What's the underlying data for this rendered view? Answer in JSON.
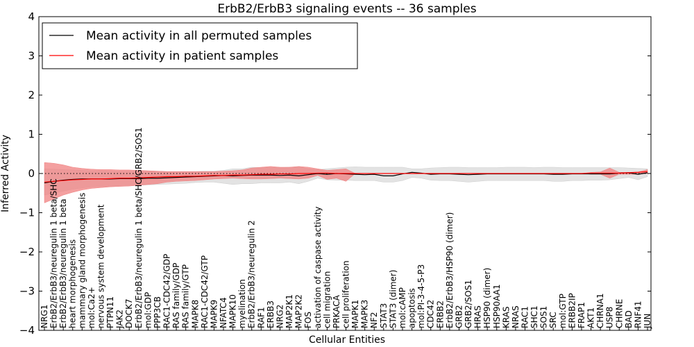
{
  "chart_data": {
    "type": "line",
    "title": "ErbB2/ErbB3 signaling events -- 36 samples",
    "xlabel": "Cellular Entities",
    "ylabel": "Inferred Activity",
    "ylim": [
      -4,
      4
    ],
    "yticks": [
      -4,
      -3,
      -2,
      -1,
      0,
      1,
      2,
      3,
      4
    ],
    "grid": false,
    "legend_position": "top-left",
    "categories": [
      "NRG1",
      "ErbB2/ErbB3/neuregulin 1 beta/SHC",
      "ErbB2/ErbB3/neuregulin 1 beta",
      "heart morphogenesis",
      "mammary gland morphogenesis",
      "mol:Ca2+",
      "nervous system development",
      "PTPN11",
      "JAK2",
      "DOCK7",
      "ErbB2/ErbB3/neuregulin 1 beta/SHC/GRB2/SOS1",
      "mol:GDP",
      "PPP3CB",
      "RAC1-CDC42/GDP",
      "RAS family/GDP",
      "RAS family/GTP",
      "MAPK8",
      "RAC1-CDC42/GTP",
      "MAPK9",
      "NFATC4",
      "MAPK10",
      "myelination",
      "ErbB2/ErbB3/neuregulin 2",
      "RAF1",
      "ERBB3",
      "NRG2",
      "MAP2K1",
      "MAP2K2",
      "FOS",
      "activation of caspase activity",
      "cell migration",
      "PRKACA",
      "cell proliferation",
      "MAPK1",
      "MAPK3",
      "NF2",
      "STAT3",
      "STAT3 (dimer)",
      "mol:cAMP",
      "apoptosis",
      "mol:PI-3-4-5-P3",
      "CDC42",
      "ERBB2",
      "ErbB2/ErbB3/HSP90 (dimer)",
      "GRB2",
      "GRB2/SOS1",
      "HRAS",
      "HSP90 (dimer)",
      "HSP90AA1",
      "KRAS",
      "NRAS",
      "RAC1",
      "SHC1",
      "SOS1",
      "SRC",
      "mol:GTP",
      "ERBB2IP",
      "FRAP1",
      "AKT1",
      "CHRNA1",
      "USP8",
      "CHRNE",
      "BAD",
      "RNF41",
      "JUN"
    ],
    "series": [
      {
        "name": "Mean activity in all permuted samples",
        "color": "#000000",
        "values": [
          -0.24,
          -0.2,
          -0.17,
          -0.15,
          -0.14,
          -0.14,
          -0.14,
          -0.14,
          -0.13,
          -0.13,
          -0.13,
          -0.12,
          -0.12,
          -0.11,
          -0.1,
          -0.09,
          -0.08,
          -0.07,
          -0.06,
          -0.05,
          -0.06,
          -0.05,
          -0.04,
          -0.04,
          -0.04,
          -0.05,
          -0.04,
          -0.06,
          -0.03,
          0.0,
          -0.02,
          0.0,
          -0.01,
          -0.02,
          -0.03,
          -0.02,
          -0.06,
          -0.06,
          -0.01,
          0.03,
          0.01,
          -0.02,
          -0.01,
          -0.01,
          -0.02,
          -0.03,
          -0.02,
          -0.01,
          -0.01,
          -0.01,
          -0.01,
          -0.01,
          -0.01,
          -0.01,
          -0.02,
          -0.02,
          -0.01,
          -0.01,
          -0.01,
          -0.01,
          -0.01,
          0.01,
          0.02,
          -0.02,
          0.02
        ],
        "band": {
          "color": "#cccccc",
          "upper": [
            0.12,
            0.11,
            0.1,
            0.09,
            0.08,
            0.07,
            0.07,
            0.06,
            0.06,
            0.06,
            0.06,
            0.06,
            0.06,
            0.05,
            0.05,
            0.05,
            0.05,
            0.06,
            0.06,
            0.08,
            0.12,
            0.12,
            0.16,
            0.15,
            0.15,
            0.15,
            0.16,
            0.17,
            0.12,
            0.1,
            0.12,
            0.14,
            0.16,
            0.17,
            0.16,
            0.16,
            0.16,
            0.16,
            0.16,
            0.12,
            0.12,
            0.14,
            0.15,
            0.16,
            0.16,
            0.15,
            0.15,
            0.15,
            0.15,
            0.16,
            0.16,
            0.16,
            0.15,
            0.16,
            0.16,
            0.15,
            0.15,
            0.15,
            0.15,
            0.15,
            0.15,
            0.15,
            0.14,
            0.13,
            0.12
          ],
          "lower": [
            -0.55,
            -0.5,
            -0.45,
            -0.4,
            -0.37,
            -0.34,
            -0.33,
            -0.32,
            -0.31,
            -0.3,
            -0.3,
            -0.29,
            -0.28,
            -0.27,
            -0.26,
            -0.25,
            -0.23,
            -0.22,
            -0.22,
            -0.25,
            -0.28,
            -0.26,
            -0.26,
            -0.24,
            -0.24,
            -0.24,
            -0.22,
            -0.26,
            -0.2,
            -0.12,
            -0.16,
            -0.17,
            -0.17,
            -0.18,
            -0.18,
            -0.18,
            -0.22,
            -0.22,
            -0.18,
            -0.1,
            -0.12,
            -0.17,
            -0.18,
            -0.18,
            -0.2,
            -0.22,
            -0.2,
            -0.18,
            -0.18,
            -0.18,
            -0.18,
            -0.18,
            -0.18,
            -0.18,
            -0.2,
            -0.2,
            -0.18,
            -0.18,
            -0.17,
            -0.17,
            -0.16,
            -0.13,
            -0.1,
            -0.16,
            -0.08
          ]
        }
      },
      {
        "name": "Mean activity in patient samples",
        "color": "#ff0000",
        "values": [
          -0.22,
          -0.2,
          -0.18,
          -0.16,
          -0.15,
          -0.14,
          -0.14,
          -0.13,
          -0.12,
          -0.12,
          -0.11,
          -0.1,
          -0.09,
          -0.08,
          -0.08,
          -0.07,
          -0.07,
          -0.06,
          -0.05,
          -0.05,
          -0.04,
          -0.04,
          -0.03,
          -0.02,
          -0.02,
          -0.01,
          -0.01,
          0.0,
          0.0,
          0.01,
          0.01,
          0.0,
          0.0,
          0.0,
          0.0,
          0.0,
          0.0,
          0.0,
          0.0,
          0.0,
          0.0,
          0.0,
          0.0,
          0.0,
          0.0,
          0.0,
          0.0,
          0.0,
          0.0,
          0.0,
          0.0,
          0.0,
          0.0,
          0.0,
          0.0,
          0.0,
          0.0,
          0.0,
          0.01,
          0.01,
          0.01,
          0.01,
          0.02,
          0.03,
          0.05
        ],
        "band": {
          "color": "#f08080",
          "upper": [
            0.28,
            0.26,
            0.22,
            0.16,
            0.13,
            0.11,
            0.1,
            0.1,
            0.09,
            0.09,
            0.08,
            0.07,
            0.06,
            0.05,
            0.05,
            0.05,
            0.05,
            0.05,
            0.05,
            0.06,
            0.07,
            0.09,
            0.14,
            0.16,
            0.18,
            0.16,
            0.16,
            0.18,
            0.16,
            0.12,
            0.08,
            0.1,
            0.12,
            0.0,
            0.0,
            0.0,
            0.0,
            0.0,
            0.0,
            0.0,
            0.0,
            0.0,
            0.0,
            0.0,
            0.0,
            0.0,
            0.0,
            0.0,
            0.0,
            0.0,
            0.0,
            0.0,
            0.0,
            0.0,
            0.0,
            0.0,
            0.0,
            0.0,
            0.03,
            0.04,
            0.14,
            0.03,
            0.03,
            0.04,
            0.1
          ],
          "lower": [
            -0.75,
            -0.65,
            -0.55,
            -0.48,
            -0.42,
            -0.38,
            -0.36,
            -0.34,
            -0.33,
            -0.32,
            -0.3,
            -0.28,
            -0.26,
            -0.22,
            -0.2,
            -0.19,
            -0.18,
            -0.16,
            -0.14,
            -0.13,
            -0.12,
            -0.13,
            -0.14,
            -0.14,
            -0.13,
            -0.12,
            -0.13,
            -0.14,
            -0.12,
            -0.05,
            -0.15,
            -0.12,
            -0.2,
            0.0,
            0.0,
            0.0,
            0.0,
            0.0,
            0.0,
            0.0,
            0.0,
            0.0,
            0.0,
            0.0,
            0.0,
            0.0,
            0.0,
            0.0,
            0.0,
            0.0,
            0.0,
            0.0,
            0.0,
            0.0,
            0.0,
            0.0,
            0.0,
            0.0,
            -0.02,
            -0.02,
            -0.12,
            -0.02,
            -0.02,
            -0.02,
            0.0
          ]
        }
      }
    ],
    "reference_line": {
      "y": 0,
      "style": "dotted",
      "color": "#000000"
    }
  }
}
